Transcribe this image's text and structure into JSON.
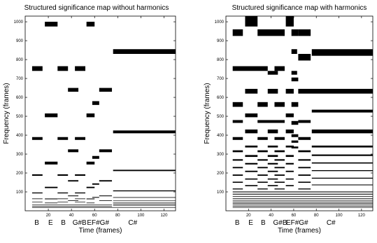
{
  "chart_data": [
    {
      "type": "heatmap",
      "title": "Structured significance map without harmonics",
      "xlabel": "Time (frames)",
      "ylabel": "Frequency (frames)",
      "xlim": [
        0,
        130
      ],
      "ylim": [
        0,
        1030
      ],
      "x_ticks": [
        20,
        40,
        60,
        80,
        100,
        120
      ],
      "y_ticks": [
        100,
        200,
        300,
        400,
        500,
        600,
        700,
        800,
        900,
        1000
      ],
      "note_labels": [
        {
          "x": 10,
          "text": "B"
        },
        {
          "x": 22,
          "text": "E"
        },
        {
          "x": 33,
          "text": "B"
        },
        {
          "x": 47,
          "text": "G#B"
        },
        {
          "x": 63,
          "text": "EF#G#"
        },
        {
          "x": 93,
          "text": "C#"
        }
      ],
      "cells": [
        [
          17,
          28,
          975,
          1000
        ],
        [
          53,
          60,
          975,
          1000
        ],
        [
          76,
          130,
          830,
          855
        ],
        [
          6,
          15,
          740,
          765
        ],
        [
          28,
          37,
          740,
          765
        ],
        [
          43,
          52,
          740,
          765
        ],
        [
          37,
          46,
          630,
          650
        ],
        [
          64,
          75,
          630,
          650
        ],
        [
          58,
          64,
          560,
          580
        ],
        [
          17,
          28,
          495,
          515
        ],
        [
          53,
          60,
          495,
          515
        ],
        [
          76,
          130,
          410,
          425
        ],
        [
          6,
          15,
          375,
          390
        ],
        [
          28,
          37,
          375,
          390
        ],
        [
          43,
          52,
          375,
          390
        ],
        [
          17,
          28,
          245,
          260
        ],
        [
          37,
          46,
          310,
          325
        ],
        [
          53,
          60,
          245,
          260
        ],
        [
          64,
          75,
          310,
          325
        ],
        [
          58,
          64,
          275,
          290
        ],
        [
          76,
          130,
          210,
          217
        ],
        [
          6,
          15,
          185,
          193
        ],
        [
          28,
          37,
          185,
          193
        ],
        [
          43,
          52,
          185,
          193
        ],
        [
          17,
          28,
          120,
          127
        ],
        [
          37,
          46,
          155,
          162
        ],
        [
          53,
          60,
          120,
          127
        ],
        [
          64,
          75,
          155,
          162
        ],
        [
          58,
          64,
          138,
          145
        ],
        [
          76,
          130,
          103,
          108
        ],
        [
          6,
          15,
          92,
          97
        ],
        [
          28,
          37,
          92,
          97
        ],
        [
          43,
          52,
          92,
          97
        ],
        [
          17,
          28,
          61,
          65
        ],
        [
          37,
          46,
          77,
          81
        ],
        [
          53,
          60,
          61,
          65
        ],
        [
          64,
          75,
          77,
          81
        ],
        [
          58,
          64,
          69,
          73
        ],
        [
          76,
          130,
          69,
          72
        ],
        [
          6,
          15,
          62,
          65
        ],
        [
          28,
          37,
          62,
          65
        ],
        [
          43,
          52,
          62,
          65
        ],
        [
          17,
          28,
          40,
          43
        ],
        [
          37,
          46,
          52,
          55
        ],
        [
          53,
          60,
          40,
          43
        ],
        [
          64,
          75,
          52,
          55
        ],
        [
          76,
          130,
          52,
          54
        ],
        [
          6,
          15,
          46,
          48
        ],
        [
          28,
          37,
          46,
          48
        ],
        [
          43,
          52,
          46,
          48
        ],
        [
          6,
          75,
          30,
          32
        ],
        [
          76,
          130,
          41,
          43
        ],
        [
          6,
          75,
          22,
          24
        ],
        [
          76,
          130,
          34,
          36
        ],
        [
          76,
          130,
          29,
          30
        ],
        [
          6,
          130,
          18,
          19
        ]
      ]
    },
    {
      "type": "heatmap",
      "title": "Structured significance map with harmonics",
      "xlabel": "Time (frames)",
      "ylabel": "Frequency (frames)",
      "xlim": [
        0,
        130
      ],
      "ylim": [
        0,
        1030
      ],
      "x_ticks": [
        20,
        40,
        60,
        80,
        100,
        120
      ],
      "y_ticks": [
        100,
        200,
        300,
        400,
        500,
        600,
        700,
        800,
        900,
        1000
      ],
      "note_labels": [
        {
          "x": 10,
          "text": "B"
        },
        {
          "x": 22,
          "text": "E"
        },
        {
          "x": 33,
          "text": "B"
        },
        {
          "x": 48,
          "text": "G#B"
        },
        {
          "x": 63,
          "text": "EF#G#"
        },
        {
          "x": 93,
          "text": "C#"
        }
      ],
      "cells": [
        [
          17,
          28,
          975,
          1030
        ],
        [
          53,
          60,
          975,
          1030
        ],
        [
          6,
          15,
          925,
          960
        ],
        [
          28,
          52,
          925,
          960
        ],
        [
          58,
          64,
          925,
          960
        ],
        [
          64,
          75,
          925,
          960
        ],
        [
          58,
          63,
          830,
          855
        ],
        [
          76,
          130,
          820,
          855
        ],
        [
          64,
          75,
          795,
          830
        ],
        [
          6,
          37,
          740,
          765
        ],
        [
          43,
          52,
          740,
          765
        ],
        [
          37,
          46,
          720,
          740
        ],
        [
          58,
          63,
          720,
          740
        ],
        [
          58,
          64,
          685,
          705
        ],
        [
          17,
          28,
          620,
          645
        ],
        [
          37,
          46,
          620,
          645
        ],
        [
          53,
          60,
          620,
          645
        ],
        [
          64,
          130,
          620,
          645
        ],
        [
          6,
          15,
          550,
          575
        ],
        [
          28,
          37,
          550,
          575
        ],
        [
          43,
          52,
          550,
          575
        ],
        [
          58,
          64,
          550,
          575
        ],
        [
          17,
          28,
          495,
          515
        ],
        [
          53,
          60,
          495,
          515
        ],
        [
          76,
          130,
          520,
          535
        ],
        [
          6,
          15,
          465,
          480
        ],
        [
          28,
          52,
          465,
          480
        ],
        [
          58,
          64,
          455,
          475
        ],
        [
          64,
          75,
          465,
          480
        ],
        [
          17,
          28,
          410,
          430
        ],
        [
          37,
          46,
          410,
          430
        ],
        [
          53,
          60,
          410,
          430
        ],
        [
          76,
          130,
          410,
          430
        ],
        [
          58,
          64,
          390,
          405
        ],
        [
          6,
          15,
          375,
          390
        ],
        [
          28,
          37,
          375,
          390
        ],
        [
          43,
          52,
          375,
          390
        ],
        [
          64,
          75,
          375,
          390
        ],
        [
          58,
          64,
          360,
          372
        ],
        [
          17,
          28,
          335,
          345
        ],
        [
          37,
          46,
          335,
          345
        ],
        [
          53,
          60,
          335,
          345
        ],
        [
          58,
          64,
          330,
          340
        ],
        [
          76,
          130,
          335,
          345
        ],
        [
          6,
          15,
          310,
          320
        ],
        [
          28,
          37,
          310,
          320
        ],
        [
          43,
          52,
          310,
          320
        ],
        [
          64,
          75,
          310,
          320
        ],
        [
          17,
          28,
          285,
          295
        ],
        [
          37,
          46,
          285,
          295
        ],
        [
          53,
          60,
          285,
          295
        ],
        [
          76,
          130,
          290,
          298
        ],
        [
          6,
          15,
          265,
          273
        ],
        [
          28,
          37,
          265,
          273
        ],
        [
          43,
          52,
          265,
          273
        ],
        [
          64,
          75,
          265,
          273
        ],
        [
          17,
          28,
          245,
          253
        ],
        [
          37,
          46,
          245,
          253
        ],
        [
          53,
          60,
          245,
          253
        ],
        [
          76,
          130,
          250,
          256
        ],
        [
          6,
          15,
          225,
          232
        ],
        [
          28,
          37,
          225,
          232
        ],
        [
          43,
          52,
          225,
          232
        ],
        [
          64,
          75,
          225,
          232
        ],
        [
          17,
          28,
          205,
          212
        ],
        [
          37,
          46,
          205,
          212
        ],
        [
          53,
          60,
          205,
          212
        ],
        [
          76,
          130,
          210,
          215
        ],
        [
          6,
          15,
          185,
          192
        ],
        [
          28,
          37,
          185,
          192
        ],
        [
          43,
          52,
          185,
          192
        ],
        [
          64,
          75,
          185,
          192
        ],
        [
          17,
          28,
          165,
          171
        ],
        [
          37,
          46,
          165,
          171
        ],
        [
          53,
          60,
          165,
          171
        ],
        [
          76,
          130,
          170,
          175
        ],
        [
          6,
          15,
          148,
          154
        ],
        [
          28,
          37,
          148,
          154
        ],
        [
          43,
          52,
          148,
          154
        ],
        [
          64,
          75,
          148,
          154
        ],
        [
          17,
          28,
          130,
          136
        ],
        [
          37,
          46,
          130,
          136
        ],
        [
          53,
          60,
          130,
          136
        ],
        [
          76,
          130,
          135,
          139
        ],
        [
          6,
          15,
          113,
          118
        ],
        [
          28,
          37,
          113,
          118
        ],
        [
          43,
          52,
          113,
          118
        ],
        [
          64,
          75,
          113,
          118
        ],
        [
          6,
          130,
          98,
          102
        ],
        [
          6,
          130,
          86,
          90
        ],
        [
          6,
          130,
          75,
          78
        ],
        [
          6,
          130,
          64,
          67
        ],
        [
          6,
          130,
          54,
          57
        ],
        [
          6,
          130,
          45,
          48
        ],
        [
          6,
          130,
          37,
          40
        ],
        [
          6,
          130,
          30,
          32
        ],
        [
          6,
          130,
          23,
          25
        ],
        [
          6,
          130,
          17,
          19
        ]
      ]
    }
  ]
}
